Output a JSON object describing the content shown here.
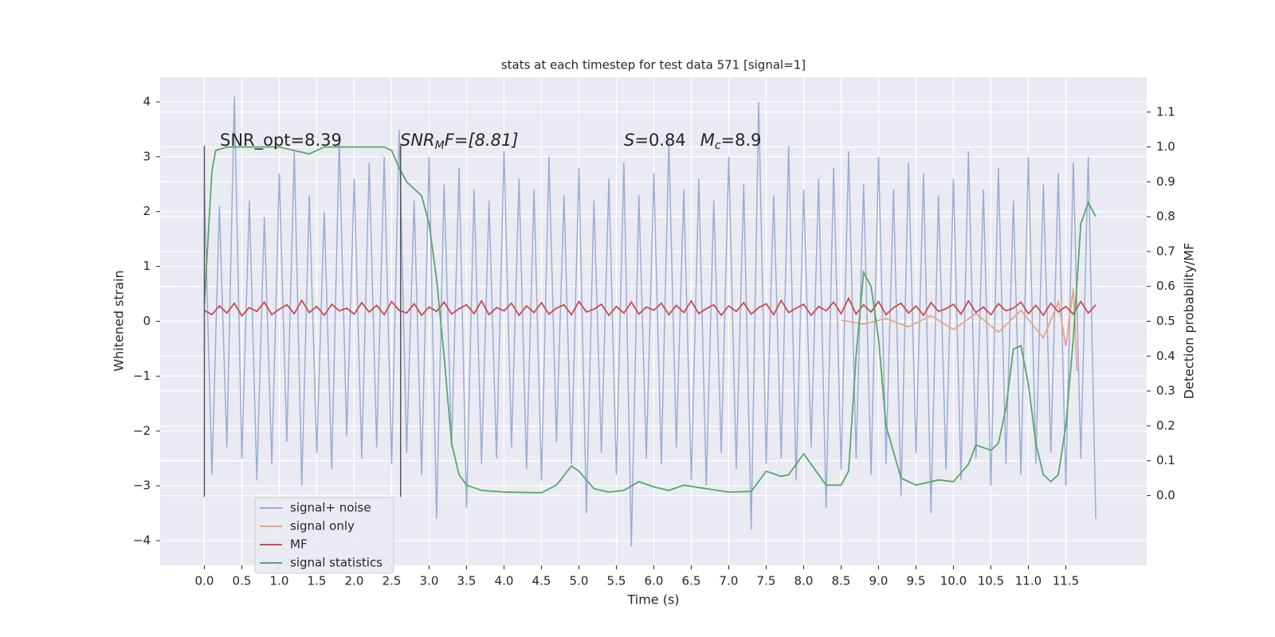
{
  "chart_data": {
    "type": "line",
    "title": "stats at each timestep for test data 571 [signal=1]",
    "xlabel": "Time (s)",
    "ylabel": "Whitened strain",
    "y2label": "Detection probability/MF",
    "xlim": [
      -0.59,
      12.58
    ],
    "ylim": [
      -4.45,
      4.45
    ],
    "y2lim": [
      -0.2,
      1.2
    ],
    "xticks": [
      {
        "value": 0,
        "label": "0.0"
      },
      0.5,
      {
        "value": 1,
        "label": "1.0"
      },
      1.5,
      {
        "value": 2,
        "label": "2.0"
      },
      2.5,
      {
        "value": 3,
        "label": "3.0"
      },
      3.5,
      {
        "value": 4,
        "label": "4.0"
      },
      4.5,
      {
        "value": 5,
        "label": "5.0"
      },
      5.5,
      {
        "value": 6,
        "label": "6.0"
      },
      6.5,
      {
        "value": 7,
        "label": "7.0"
      },
      7.5,
      {
        "value": 8,
        "label": "8.0"
      },
      8.5,
      {
        "value": 9,
        "label": "9.0"
      },
      9.5,
      {
        "value": 10,
        "label": "10.0"
      },
      10.5,
      {
        "value": 11,
        "label": "11.0"
      },
      11.5
    ],
    "yticks": [
      {
        "value": -4,
        "label": "−4"
      },
      {
        "value": -3,
        "label": "−3"
      },
      {
        "value": -2,
        "label": "−2"
      },
      {
        "value": -1,
        "label": "−1"
      },
      0,
      1,
      2,
      3,
      4
    ],
    "y2ticks": [
      {
        "value": 0,
        "label": "0.0"
      },
      0.1,
      0.2,
      0.3,
      0.4,
      0.5,
      0.6,
      0.7,
      0.8,
      0.9,
      {
        "value": 1,
        "label": "1.0"
      },
      1.1
    ],
    "grid": true,
    "background": "#eaeaf2",
    "vlines": {
      "x": [
        0,
        2.62
      ],
      "ymin": -3.2,
      "ymax": 3.2,
      "color": "#555555"
    },
    "annotations": [
      [
        "SNR_opt=8.39"
      ],
      [
        "SNR",
        "M",
        "F=[8.81]"
      ],
      [
        "S",
        "=0.84",
        "M",
        "c",
        "=8.9"
      ]
    ],
    "series": [
      {
        "name": "signal+ noise",
        "color": "#9badd3",
        "x": [
          0,
          0.1,
          0.2,
          0.3,
          0.4,
          0.5,
          0.6,
          0.7,
          0.8,
          0.9,
          1,
          1.1,
          1.2,
          1.3,
          1.4,
          1.5,
          1.6,
          1.7,
          1.8,
          1.9,
          2,
          2.1,
          2.2,
          2.3,
          2.4,
          2.5,
          2.6,
          2.7,
          2.8,
          2.9,
          3,
          3.1,
          3.2,
          3.3,
          3.4,
          3.5,
          3.6,
          3.7,
          3.8,
          3.9,
          4,
          4.1,
          4.2,
          4.3,
          4.4,
          4.5,
          4.6,
          4.7,
          4.8,
          4.9,
          5,
          5.1,
          5.2,
          5.3,
          5.4,
          5.5,
          5.6,
          5.7,
          5.8,
          5.9,
          6,
          6.1,
          6.2,
          6.3,
          6.4,
          6.5,
          6.6,
          6.7,
          6.8,
          6.9,
          7,
          7.1,
          7.2,
          7.3,
          7.4,
          7.5,
          7.6,
          7.7,
          7.8,
          7.9,
          8,
          8.1,
          8.2,
          8.3,
          8.4,
          8.5,
          8.6,
          8.7,
          8.8,
          8.9,
          9,
          9.1,
          9.2,
          9.3,
          9.4,
          9.5,
          9.6,
          9.7,
          9.8,
          9.9,
          10,
          10.1,
          10.2,
          10.3,
          10.4,
          10.5,
          10.6,
          10.7,
          10.8,
          10.9,
          11,
          11.1,
          11.2,
          11.3,
          11.4,
          11.5,
          11.6,
          11.7,
          11.8,
          11.9
        ],
        "values": [
          2.4,
          -2.8,
          2.1,
          -2.3,
          4.1,
          -2.5,
          2.2,
          -2.9,
          1.9,
          -2.6,
          2.7,
          -2.2,
          3.1,
          -3.0,
          2.3,
          -2.4,
          2.0,
          -2.7,
          3.3,
          -2.1,
          2.6,
          -2.5,
          2.9,
          -2.3,
          3.0,
          -2.6,
          3.5,
          -2.4,
          2.2,
          -2.8,
          3.0,
          -3.6,
          2.5,
          -2.3,
          2.8,
          -3.4,
          2.4,
          -2.6,
          2.2,
          -2.5,
          3.1,
          -2.3,
          2.6,
          -2.7,
          2.4,
          -2.9,
          3.0,
          -2.2,
          2.3,
          -2.6,
          2.8,
          -3.5,
          2.2,
          -2.4,
          2.6,
          -2.8,
          2.9,
          -4.1,
          2.3,
          -2.5,
          2.7,
          -2.6,
          3.3,
          -2.3,
          2.4,
          -2.9,
          2.6,
          -3.0,
          2.2,
          -2.4,
          3.0,
          -2.7,
          2.5,
          -3.8,
          4.0,
          -2.6,
          2.3,
          -2.5,
          3.2,
          -2.9,
          2.4,
          -2.3,
          2.6,
          -3.4,
          2.8,
          -2.7,
          3.1,
          -2.5,
          2.5,
          -2.8,
          3.0,
          -2.6,
          2.4,
          -3.2,
          2.9,
          -2.4,
          2.7,
          -3.5,
          2.3,
          -2.7,
          2.6,
          -2.9,
          3.1,
          -2.5,
          2.4,
          -3.0,
          2.8,
          -2.6,
          2.2,
          -2.8,
          3.0,
          -2.6,
          2.5,
          -2.4,
          2.7,
          -3.0,
          2.9,
          -2.5,
          3.0,
          -3.6
        ]
      },
      {
        "name": "signal only",
        "color": "#e8a58a",
        "x": [
          8.5,
          8.8,
          9.1,
          9.4,
          9.7,
          10,
          10.3,
          10.6,
          10.9,
          11.2,
          11.4,
          11.5,
          11.6,
          11.65
        ],
        "values": [
          0.02,
          -0.05,
          0.05,
          -0.1,
          0.1,
          -0.15,
          0.14,
          -0.2,
          0.2,
          -0.3,
          0.35,
          -0.45,
          0.6,
          -0.9
        ]
      },
      {
        "name": "MF",
        "color": "#c44e52",
        "x": [
          0,
          0.1,
          0.2,
          0.3,
          0.4,
          0.5,
          0.6,
          0.7,
          0.8,
          0.9,
          1,
          1.1,
          1.2,
          1.3,
          1.4,
          1.5,
          1.6,
          1.7,
          1.8,
          1.9,
          2,
          2.1,
          2.2,
          2.3,
          2.4,
          2.5,
          2.6,
          2.7,
          2.8,
          2.9,
          3,
          3.1,
          3.2,
          3.3,
          3.4,
          3.5,
          3.6,
          3.7,
          3.8,
          3.9,
          4,
          4.1,
          4.2,
          4.3,
          4.4,
          4.5,
          4.6,
          4.7,
          4.8,
          4.9,
          5,
          5.1,
          5.2,
          5.3,
          5.4,
          5.5,
          5.6,
          5.7,
          5.8,
          5.9,
          6,
          6.1,
          6.2,
          6.3,
          6.4,
          6.5,
          6.6,
          6.7,
          6.8,
          6.9,
          7,
          7.1,
          7.2,
          7.3,
          7.4,
          7.5,
          7.6,
          7.7,
          7.8,
          7.9,
          8,
          8.1,
          8.2,
          8.3,
          8.4,
          8.5,
          8.6,
          8.7,
          8.8,
          8.9,
          9,
          9.1,
          9.2,
          9.3,
          9.4,
          9.5,
          9.6,
          9.7,
          9.8,
          9.9,
          10,
          10.1,
          10.2,
          10.3,
          10.4,
          10.5,
          10.6,
          10.7,
          10.8,
          10.9,
          11,
          11.1,
          11.2,
          11.3,
          11.4,
          11.5,
          11.6,
          11.7,
          11.8,
          11.9
        ],
        "values": [
          0.2,
          0.12,
          0.28,
          0.15,
          0.33,
          0.1,
          0.25,
          0.18,
          0.35,
          0.12,
          0.22,
          0.3,
          0.14,
          0.38,
          0.16,
          0.27,
          0.11,
          0.31,
          0.19,
          0.24,
          0.13,
          0.34,
          0.17,
          0.29,
          0.12,
          0.36,
          0.2,
          0.15,
          0.32,
          0.11,
          0.26,
          0.18,
          0.35,
          0.13,
          0.23,
          0.3,
          0.14,
          0.37,
          0.12,
          0.25,
          0.19,
          0.33,
          0.11,
          0.28,
          0.16,
          0.34,
          0.13,
          0.24,
          0.3,
          0.12,
          0.36,
          0.17,
          0.22,
          0.31,
          0.11,
          0.27,
          0.15,
          0.35,
          0.13,
          0.26,
          0.2,
          0.33,
          0.12,
          0.29,
          0.16,
          0.37,
          0.14,
          0.23,
          0.3,
          0.11,
          0.28,
          0.18,
          0.34,
          0.13,
          0.25,
          0.32,
          0.12,
          0.38,
          0.16,
          0.24,
          0.31,
          0.11,
          0.27,
          0.19,
          0.35,
          0.14,
          0.42,
          0.13,
          0.3,
          0.17,
          0.36,
          0.12,
          0.25,
          0.33,
          0.15,
          0.28,
          0.11,
          0.34,
          0.18,
          0.23,
          0.31,
          0.13,
          0.37,
          0.16,
          0.26,
          0.12,
          0.32,
          0.19,
          0.24,
          0.35,
          0.14,
          0.29,
          0.11,
          0.33,
          0.17,
          0.27,
          0.13,
          0.36,
          0.15,
          0.3
        ]
      },
      {
        "name": "signal statistics",
        "color": "#55a868",
        "axis": "y2",
        "x": [
          0,
          0.1,
          0.15,
          0.3,
          1,
          1.3,
          1.4,
          1.6,
          2,
          2.4,
          2.5,
          2.6,
          2.7,
          2.9,
          3,
          3.1,
          3.2,
          3.3,
          3.4,
          3.5,
          3.7,
          4,
          4.5,
          4.7,
          4.9,
          5,
          5.2,
          5.4,
          5.6,
          5.8,
          6,
          6.2,
          6.4,
          6.7,
          7,
          7.3,
          7.5,
          7.7,
          7.8,
          8,
          8.1,
          8.3,
          8.5,
          8.6,
          8.7,
          8.8,
          8.9,
          9,
          9.1,
          9.3,
          9.5,
          9.8,
          10,
          10.2,
          10.3,
          10.5,
          10.6,
          10.7,
          10.8,
          10.9,
          11,
          11.1,
          11.2,
          11.3,
          11.4,
          11.5,
          11.6,
          11.7,
          11.8,
          11.9
        ],
        "values": [
          0.55,
          0.93,
          0.99,
          1.0,
          1.0,
          0.985,
          0.98,
          1.0,
          1.0,
          1.0,
          0.99,
          0.94,
          0.9,
          0.86,
          0.78,
          0.62,
          0.4,
          0.15,
          0.06,
          0.03,
          0.015,
          0.01,
          0.008,
          0.03,
          0.085,
          0.07,
          0.02,
          0.01,
          0.015,
          0.04,
          0.025,
          0.015,
          0.03,
          0.02,
          0.01,
          0.012,
          0.07,
          0.055,
          0.06,
          0.12,
          0.09,
          0.03,
          0.03,
          0.07,
          0.4,
          0.64,
          0.6,
          0.45,
          0.2,
          0.05,
          0.03,
          0.045,
          0.04,
          0.09,
          0.145,
          0.13,
          0.15,
          0.25,
          0.42,
          0.43,
          0.32,
          0.15,
          0.06,
          0.04,
          0.06,
          0.2,
          0.45,
          0.78,
          0.84,
          0.8
        ]
      }
    ]
  }
}
